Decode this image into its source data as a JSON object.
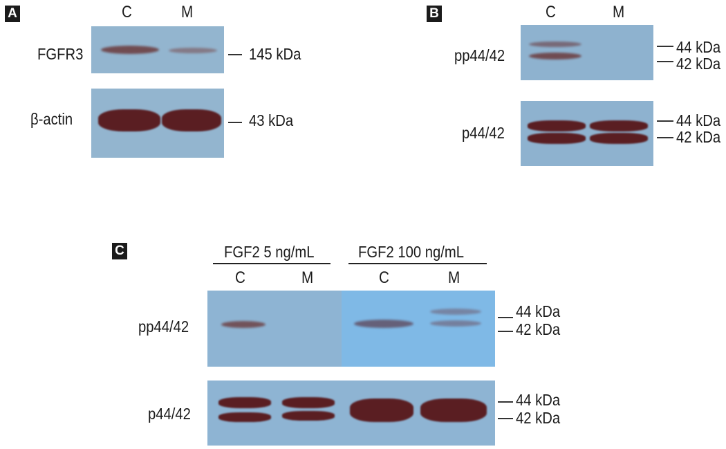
{
  "panel_a": {
    "letter": "A",
    "lanes": [
      "C",
      "M"
    ],
    "rows": [
      {
        "label": "FGFR3",
        "kda": "145 kDa"
      },
      {
        "label": "β-actin",
        "kda": "43 kDa"
      }
    ]
  },
  "panel_b": {
    "letter": "B",
    "lanes": [
      "C",
      "M"
    ],
    "rows": [
      {
        "label": "pp44/42",
        "kda_top": "44 kDa",
        "kda_bottom": "42 kDa"
      },
      {
        "label": "p44/42",
        "kda_top": "44 kDa",
        "kda_bottom": "42 kDa"
      }
    ]
  },
  "panel_c": {
    "letter": "C",
    "groups": [
      {
        "title": "FGF2 5 ng/mL",
        "lanes": [
          "C",
          "M"
        ]
      },
      {
        "title": "FGF2 100 ng/mL",
        "lanes": [
          "C",
          "M"
        ]
      }
    ],
    "rows": [
      {
        "label": "pp44/42",
        "kda_top": "44 kDa",
        "kda_bottom": "42 kDa"
      },
      {
        "label": "p44/42",
        "kda_top": "44 kDa",
        "kda_bottom": "42 kDa"
      }
    ]
  },
  "colors": {
    "membrane": "#8fb3cf",
    "membrane_bright": "#7fb9e6",
    "band_dark": "#5a1e22"
  }
}
